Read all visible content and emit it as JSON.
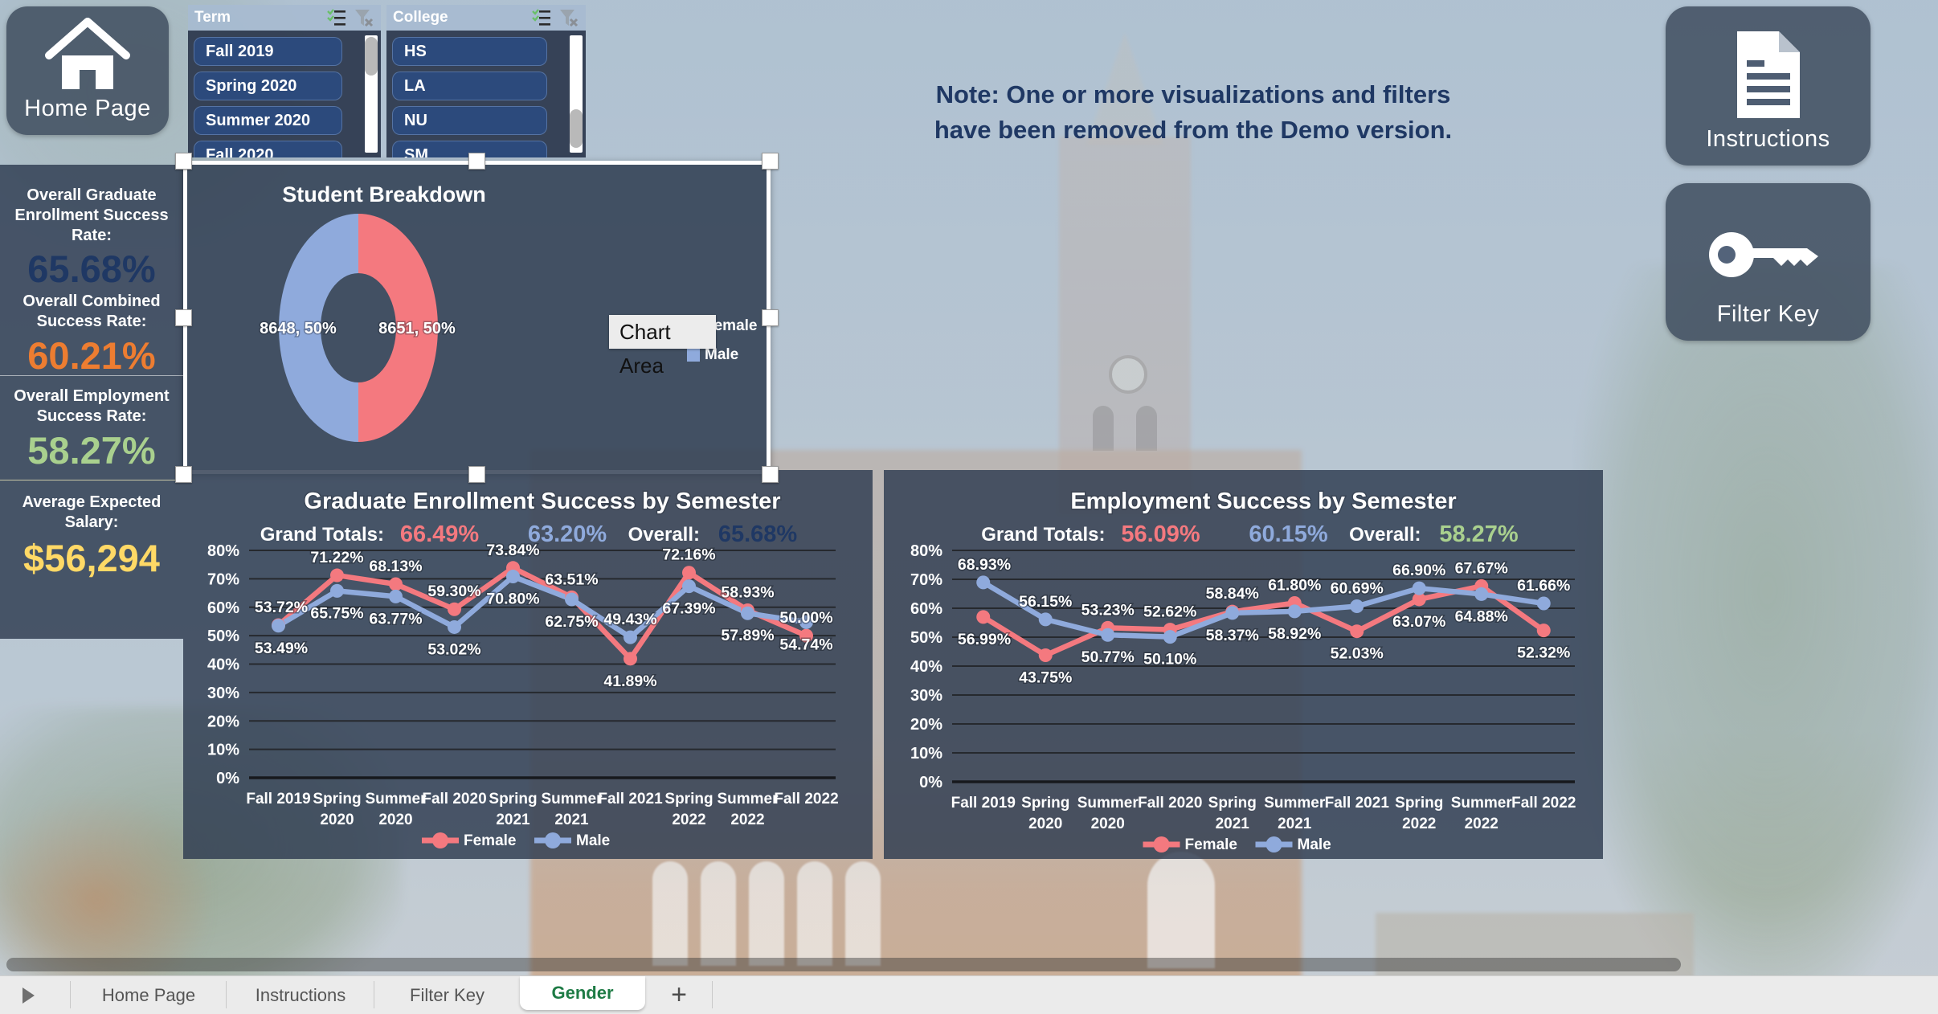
{
  "buttons": {
    "home": "Home Page",
    "instructions": "Instructions",
    "filter_key": "Filter Key"
  },
  "slicers": [
    {
      "title": "Term",
      "items": [
        "Fall 2019",
        "Spring 2020",
        "Summer 2020",
        "Fall 2020"
      ],
      "scroll_thumb": "top"
    },
    {
      "title": "College",
      "items": [
        "HS",
        "LA",
        "NU",
        "SM"
      ],
      "scroll_thumb": "middle"
    }
  ],
  "stats": [
    {
      "label": "Overall Graduate Enrollment Success Rate:",
      "value": "65.68%",
      "color": "#1f3864"
    },
    {
      "label": "Overall Combined Success Rate:",
      "value": "60.21%",
      "color": "#ed7d31"
    },
    {
      "label": "Overall Employment Success Rate:",
      "value": "58.27%",
      "color": "#a9d08e"
    },
    {
      "label": "Average Expected Salary:",
      "value": "$56,294",
      "color": "#ffd966"
    }
  ],
  "note": "Note: One or more visualizations and filters have been removed from the Demo version.",
  "selection_tooltip": "Chart Area",
  "chart_data": [
    {
      "type": "pie",
      "subtype": "donut",
      "title": "Student Breakdown",
      "slices": [
        {
          "name": "Male",
          "value": 8648,
          "label": "8648, 50%",
          "color": "#8faadc",
          "side": "left"
        },
        {
          "name": "Female",
          "value": 8651,
          "label": "8651, 50%",
          "color": "#f4797f",
          "side": "right"
        }
      ],
      "legend": [
        {
          "name": "Female",
          "color": "#f4797f"
        },
        {
          "name": "Male",
          "color": "#8faadc"
        }
      ],
      "legend_position": "right"
    },
    {
      "type": "line",
      "title": "Graduate Enrollment Success by Semester",
      "totals_label": "Grand Totals:",
      "overall_label": "Overall:",
      "grand_totals": [
        {
          "series": "Female",
          "value": "66.49%",
          "color": "#f4797f"
        },
        {
          "series": "Male",
          "value": "63.20%",
          "color": "#8faadc"
        }
      ],
      "overall": {
        "value": "65.68%",
        "color": "#1f3864"
      },
      "categories": [
        "Fall 2019",
        "Spring 2020",
        "Summer 2020",
        "Fall 2020",
        "Spring 2021",
        "Summer 2021",
        "Fall 2021",
        "Spring 2022",
        "Summer 2022",
        "Fall 2022"
      ],
      "ylim": [
        0,
        80
      ],
      "ytick_step": 10,
      "grid": true,
      "legend_position": "bottom",
      "series": [
        {
          "name": "Female",
          "color": "#f4797f",
          "values": [
            53.72,
            71.22,
            68.13,
            59.3,
            73.84,
            63.51,
            41.89,
            72.16,
            58.93,
            50
          ],
          "label_side": [
            "above",
            "above",
            "above",
            "above",
            "above",
            "above",
            "below",
            "above",
            "above",
            "above"
          ]
        },
        {
          "name": "Male",
          "color": "#8faadc",
          "values": [
            53.49,
            65.75,
            63.77,
            53.02,
            70.8,
            62.75,
            49.43,
            67.39,
            57.89,
            54.74
          ],
          "label_side": [
            "below",
            "below",
            "below",
            "below",
            "below",
            "below",
            "above",
            "below",
            "below",
            "below"
          ]
        }
      ]
    },
    {
      "type": "line",
      "title": "Employment Success by Semester",
      "totals_label": "Grand Totals:",
      "overall_label": "Overall:",
      "grand_totals": [
        {
          "series": "Female",
          "value": "56.09%",
          "color": "#f4797f"
        },
        {
          "series": "Male",
          "value": "60.15%",
          "color": "#8faadc"
        }
      ],
      "overall": {
        "value": "58.27%",
        "color": "#a9d08e"
      },
      "categories": [
        "Fall 2019",
        "Spring 2020",
        "Summer 2020",
        "Fall 2020",
        "Spring 2021",
        "Summer 2021",
        "Fall 2021",
        "Spring 2022",
        "Summer 2022",
        "Fall 2022"
      ],
      "ylim": [
        0,
        80
      ],
      "ytick_step": 10,
      "grid": true,
      "legend_position": "bottom",
      "series": [
        {
          "name": "Female",
          "color": "#f4797f",
          "values": [
            56.99,
            43.75,
            53.23,
            52.62,
            58.84,
            61.8,
            52.03,
            63.07,
            67.67,
            52.32
          ],
          "label_side": [
            "below",
            "below",
            "above",
            "above",
            "above",
            "above",
            "below",
            "below",
            "above",
            "below"
          ]
        },
        {
          "name": "Male",
          "color": "#8faadc",
          "values": [
            68.93,
            56.15,
            50.77,
            50.1,
            58.37,
            58.92,
            60.69,
            66.9,
            64.88,
            61.66
          ],
          "label_side": [
            "above",
            "above",
            "below",
            "below",
            "below",
            "below",
            "above",
            "above",
            "below",
            "above"
          ]
        }
      ]
    }
  ],
  "tabs": {
    "items": [
      {
        "label": "Home Page",
        "active": false
      },
      {
        "label": "Instructions",
        "active": false
      },
      {
        "label": "Filter Key",
        "active": false
      },
      {
        "label": "Gender",
        "active": true
      }
    ],
    "add_label": "+",
    "active_color": "#1e7b45"
  }
}
